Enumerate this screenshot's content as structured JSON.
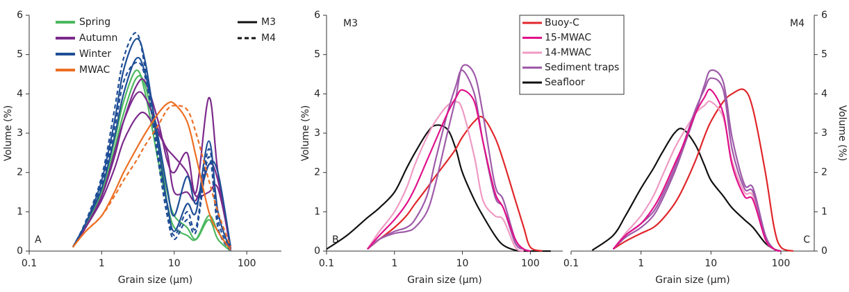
{
  "chart_data": [
    {
      "type": "line",
      "panel_label": "A",
      "xlabel": "Grain size (µm)",
      "ylabel": "Volume (%)",
      "log_x": true,
      "y_axis_side": "left",
      "xlim": [
        0.1,
        300
      ],
      "ylim": [
        0,
        6
      ],
      "xticks": [
        0.1,
        1,
        10,
        100
      ],
      "yticks": [
        0,
        1,
        2,
        3,
        4,
        5,
        6
      ],
      "x": [
        0.1,
        0.2,
        0.4,
        0.6,
        1,
        1.5,
        2,
        3,
        4,
        6,
        8,
        10,
        15,
        20,
        30,
        40,
        60,
        80,
        100,
        150,
        200
      ],
      "legend": [
        {
          "name": "Spring",
          "color": "#4cb860"
        },
        {
          "name": "Autumn",
          "color": "#7b2a8c"
        },
        {
          "name": "Winter",
          "color": "#1f4e96"
        },
        {
          "name": "MWAC",
          "color": "#ec6f23"
        }
      ],
      "line_styles": [
        {
          "name": "M3",
          "style": "solid"
        },
        {
          "name": "M4",
          "style": "dashed"
        }
      ],
      "series": [
        {
          "legend": 0,
          "style": 0,
          "values": [
            null,
            null,
            0.1,
            0.7,
            1.6,
            2.8,
            3.8,
            4.6,
            4.0,
            2.3,
            1.2,
            0.6,
            0.4,
            0.3,
            0.9,
            0.5,
            0,
            null,
            null,
            null,
            null
          ]
        },
        {
          "legend": 0,
          "style": 0,
          "values": [
            null,
            null,
            0.1,
            0.65,
            1.5,
            2.6,
            3.5,
            4.4,
            4.2,
            2.7,
            1.5,
            0.9,
            0.6,
            0.3,
            0.8,
            0.3,
            0,
            null,
            null,
            null,
            null
          ]
        },
        {
          "legend": 1,
          "style": 0,
          "values": [
            null,
            null,
            0.1,
            0.6,
            1.4,
            2.4,
            3.3,
            4.2,
            4.3,
            3.3,
            2.3,
            2.0,
            2.5,
            1.5,
            3.9,
            2.0,
            0,
            null,
            null,
            null,
            null
          ]
        },
        {
          "legend": 1,
          "style": 0,
          "values": [
            null,
            null,
            0.1,
            0.6,
            1.3,
            2.1,
            2.8,
            3.4,
            3.5,
            3.0,
            2.6,
            2.4,
            2.0,
            1.4,
            1.5,
            1.6,
            0.1,
            null,
            null,
            null,
            null
          ]
        },
        {
          "legend": 1,
          "style": 0,
          "values": [
            null,
            null,
            0.1,
            0.6,
            1.4,
            2.5,
            3.3,
            4.0,
            3.9,
            3.1,
            2.5,
            1.5,
            1.5,
            1.3,
            2.2,
            1.8,
            0.05,
            null,
            null,
            null,
            null
          ]
        },
        {
          "legend": 2,
          "style": 0,
          "values": [
            null,
            null,
            0.1,
            0.7,
            1.8,
            3.3,
            4.6,
            5.4,
            4.8,
            2.7,
            1.2,
            0.5,
            1.2,
            1.0,
            2.8,
            1.0,
            0,
            null,
            null,
            null,
            null
          ]
        },
        {
          "legend": 2,
          "style": 0,
          "values": [
            null,
            null,
            0.1,
            0.7,
            1.6,
            2.9,
            4.0,
            4.9,
            4.5,
            2.9,
            1.6,
            0.9,
            1.9,
            1.2,
            2.2,
            2.0,
            0.1,
            null,
            null,
            null,
            null
          ]
        },
        {
          "legend": 2,
          "style": 1,
          "values": [
            null,
            null,
            0.1,
            0.75,
            1.9,
            3.6,
            4.9,
            5.55,
            4.6,
            2.3,
            0.9,
            0.3,
            0.8,
            0.5,
            2.4,
            0.6,
            0,
            null,
            null,
            null,
            null
          ]
        },
        {
          "legend": 2,
          "style": 1,
          "values": [
            null,
            null,
            0.1,
            0.7,
            1.7,
            3.1,
            4.3,
            4.8,
            4.4,
            2.5,
            1.1,
            0.4,
            1.0,
            0.6,
            2.6,
            0.8,
            0,
            null,
            null,
            null,
            null
          ]
        },
        {
          "legend": 3,
          "style": 0,
          "values": [
            null,
            null,
            0.1,
            0.5,
            0.9,
            1.5,
            2.0,
            2.6,
            3.0,
            3.5,
            3.75,
            3.75,
            3.3,
            2.4,
            1.0,
            0.5,
            0.02,
            null,
            null,
            null,
            null
          ]
        },
        {
          "legend": 3,
          "style": 1,
          "values": [
            null,
            null,
            0.1,
            0.5,
            0.9,
            1.4,
            1.8,
            2.3,
            2.7,
            3.2,
            3.6,
            3.7,
            3.6,
            3.0,
            1.8,
            1.0,
            0.1,
            null,
            null,
            null,
            null
          ]
        }
      ]
    },
    {
      "type": "line",
      "panel_label": "B",
      "annotation": "M3",
      "xlabel": "Grain size (µm)",
      "ylabel": "Volume (%)",
      "log_x": true,
      "y_axis_side": "left",
      "xlim": [
        0.1,
        300
      ],
      "ylim": [
        0,
        6
      ],
      "xticks": [
        0.1,
        1,
        10,
        100
      ],
      "yticks": [
        0,
        1,
        2,
        3,
        4,
        5,
        6
      ],
      "x": [
        0.1,
        0.2,
        0.4,
        0.6,
        1,
        1.5,
        2,
        3,
        4,
        6,
        8,
        10,
        15,
        20,
        30,
        40,
        60,
        80,
        100,
        150,
        200
      ],
      "legend": [
        {
          "name": "Buoy-C",
          "color": "#e0262b"
        },
        {
          "name": "15-MWAC",
          "color": "#e0118a"
        },
        {
          "name": "14-MWAC",
          "color": "#ef9ac3"
        },
        {
          "name": "Sediment traps",
          "color": "#9e5aa8"
        },
        {
          "name": "Seafloor",
          "color": "#111111"
        }
      ],
      "series": [
        {
          "legend": 4,
          "values": [
            0.05,
            0.4,
            0.85,
            1.1,
            1.5,
            2.1,
            2.5,
            3.0,
            3.2,
            3.1,
            2.6,
            2.0,
            1.3,
            0.9,
            0.4,
            0.15,
            0.02,
            0,
            0,
            0,
            0
          ]
        },
        {
          "legend": 0,
          "values": [
            null,
            null,
            0.05,
            0.3,
            0.6,
            0.9,
            1.2,
            1.6,
            1.9,
            2.3,
            2.6,
            2.9,
            3.3,
            3.4,
            2.9,
            2.3,
            1.3,
            0.6,
            0.1,
            0,
            null
          ]
        },
        {
          "legend": 2,
          "values": [
            null,
            null,
            0.05,
            0.5,
            1.0,
            1.6,
            2.2,
            2.9,
            3.3,
            3.7,
            3.8,
            3.6,
            2.4,
            1.3,
            0.9,
            0.8,
            0.1,
            0,
            null,
            null,
            null
          ]
        },
        {
          "legend": 3,
          "values": [
            null,
            null,
            0.05,
            0.3,
            0.5,
            0.6,
            0.8,
            1.4,
            2.3,
            3.5,
            4.2,
            4.6,
            4.0,
            2.8,
            1.4,
            1.1,
            0.2,
            0.05,
            0,
            null,
            null
          ]
        },
        {
          "legend": 3,
          "values": [
            null,
            null,
            0.05,
            0.3,
            0.45,
            0.5,
            0.6,
            1.0,
            1.7,
            3.0,
            3.9,
            4.7,
            4.5,
            3.5,
            1.7,
            1.3,
            0.3,
            0.05,
            0,
            null,
            null
          ]
        },
        {
          "legend": 1,
          "values": [
            null,
            null,
            0.05,
            0.4,
            0.8,
            1.2,
            1.6,
            2.3,
            2.8,
            3.5,
            3.9,
            4.1,
            3.8,
            2.8,
            1.5,
            1.1,
            0.3,
            0.05,
            0,
            null,
            null
          ]
        }
      ]
    },
    {
      "type": "line",
      "panel_label": "C",
      "annotation": "M4",
      "xlabel": "Grain size (µm)",
      "ylabel": "Volume (%)",
      "log_x": true,
      "y_axis_side": "right",
      "xlim": [
        0.1,
        300
      ],
      "ylim": [
        0,
        6
      ],
      "xticks": [
        0.1,
        1,
        10,
        100
      ],
      "yticks": [
        0,
        1,
        2,
        3,
        4,
        5,
        6
      ],
      "x": [
        0.1,
        0.2,
        0.4,
        0.6,
        1,
        1.5,
        2,
        3,
        4,
        6,
        8,
        10,
        15,
        20,
        30,
        40,
        60,
        80,
        100,
        150,
        200
      ],
      "colors": [
        "#e0262b",
        "#e0118a",
        "#ef9ac3",
        "#9e5aa8",
        "#111111"
      ],
      "series": [
        {
          "legend": 4,
          "values": [
            null,
            0.02,
            0.4,
            0.9,
            1.6,
            2.1,
            2.5,
            3.0,
            3.1,
            2.7,
            2.2,
            1.8,
            1.4,
            1.1,
            0.8,
            0.6,
            0.2,
            0.05,
            0,
            null,
            null
          ]
        },
        {
          "legend": 0,
          "values": [
            null,
            null,
            0.05,
            0.25,
            0.45,
            0.6,
            0.8,
            1.2,
            1.6,
            2.3,
            2.9,
            3.3,
            3.8,
            4.0,
            4.1,
            3.6,
            2.0,
            0.6,
            0.1,
            0,
            null
          ]
        },
        {
          "legend": 2,
          "values": [
            null,
            null,
            0.05,
            0.45,
            0.9,
            1.4,
            1.9,
            2.6,
            3.0,
            3.5,
            3.7,
            3.8,
            3.4,
            2.3,
            1.5,
            1.4,
            0.3,
            0.05,
            0,
            null,
            null
          ]
        },
        {
          "legend": 3,
          "values": [
            null,
            null,
            0.05,
            0.4,
            0.7,
            1.0,
            1.4,
            2.1,
            2.7,
            3.6,
            4.1,
            4.4,
            4.1,
            2.6,
            1.6,
            1.5,
            0.4,
            0.05,
            0,
            null,
            null
          ]
        },
        {
          "legend": 3,
          "values": [
            null,
            null,
            0.05,
            0.35,
            0.6,
            0.9,
            1.3,
            2.0,
            2.6,
            3.5,
            4.2,
            4.6,
            4.3,
            2.9,
            1.7,
            1.6,
            0.4,
            0.05,
            0,
            null,
            null
          ]
        },
        {
          "legend": 1,
          "values": [
            null,
            null,
            0.05,
            0.4,
            0.7,
            1.1,
            1.5,
            2.2,
            2.7,
            3.5,
            3.9,
            4.1,
            3.5,
            2.2,
            1.4,
            1.3,
            0.3,
            0.05,
            0,
            null,
            null
          ]
        }
      ]
    }
  ]
}
